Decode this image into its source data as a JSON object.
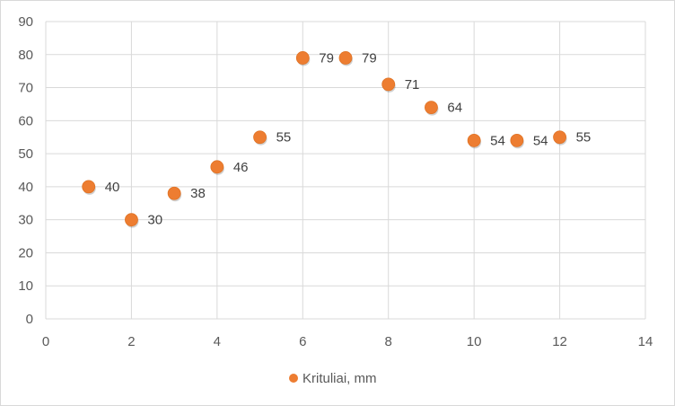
{
  "chart_data": {
    "type": "scatter",
    "title": "",
    "xlabel": "",
    "ylabel": "",
    "xlim": [
      0,
      14
    ],
    "ylim": [
      0,
      90
    ],
    "x_ticks": [
      0,
      2,
      4,
      6,
      8,
      10,
      12,
      14
    ],
    "y_ticks": [
      0,
      10,
      20,
      30,
      40,
      50,
      60,
      70,
      80,
      90
    ],
    "grid": true,
    "legend_position": "bottom",
    "series": [
      {
        "name": "Krituliai, mm",
        "color": "#ED7D31",
        "x": [
          1,
          2,
          3,
          4,
          5,
          6,
          7,
          8,
          9,
          10,
          11,
          12
        ],
        "y": [
          40,
          30,
          38,
          46,
          55,
          79,
          79,
          71,
          64,
          54,
          54,
          55
        ],
        "data_labels": [
          "40",
          "30",
          "38",
          "46",
          "55",
          "79",
          "79",
          "71",
          "64",
          "54",
          "54",
          "55"
        ]
      }
    ]
  }
}
